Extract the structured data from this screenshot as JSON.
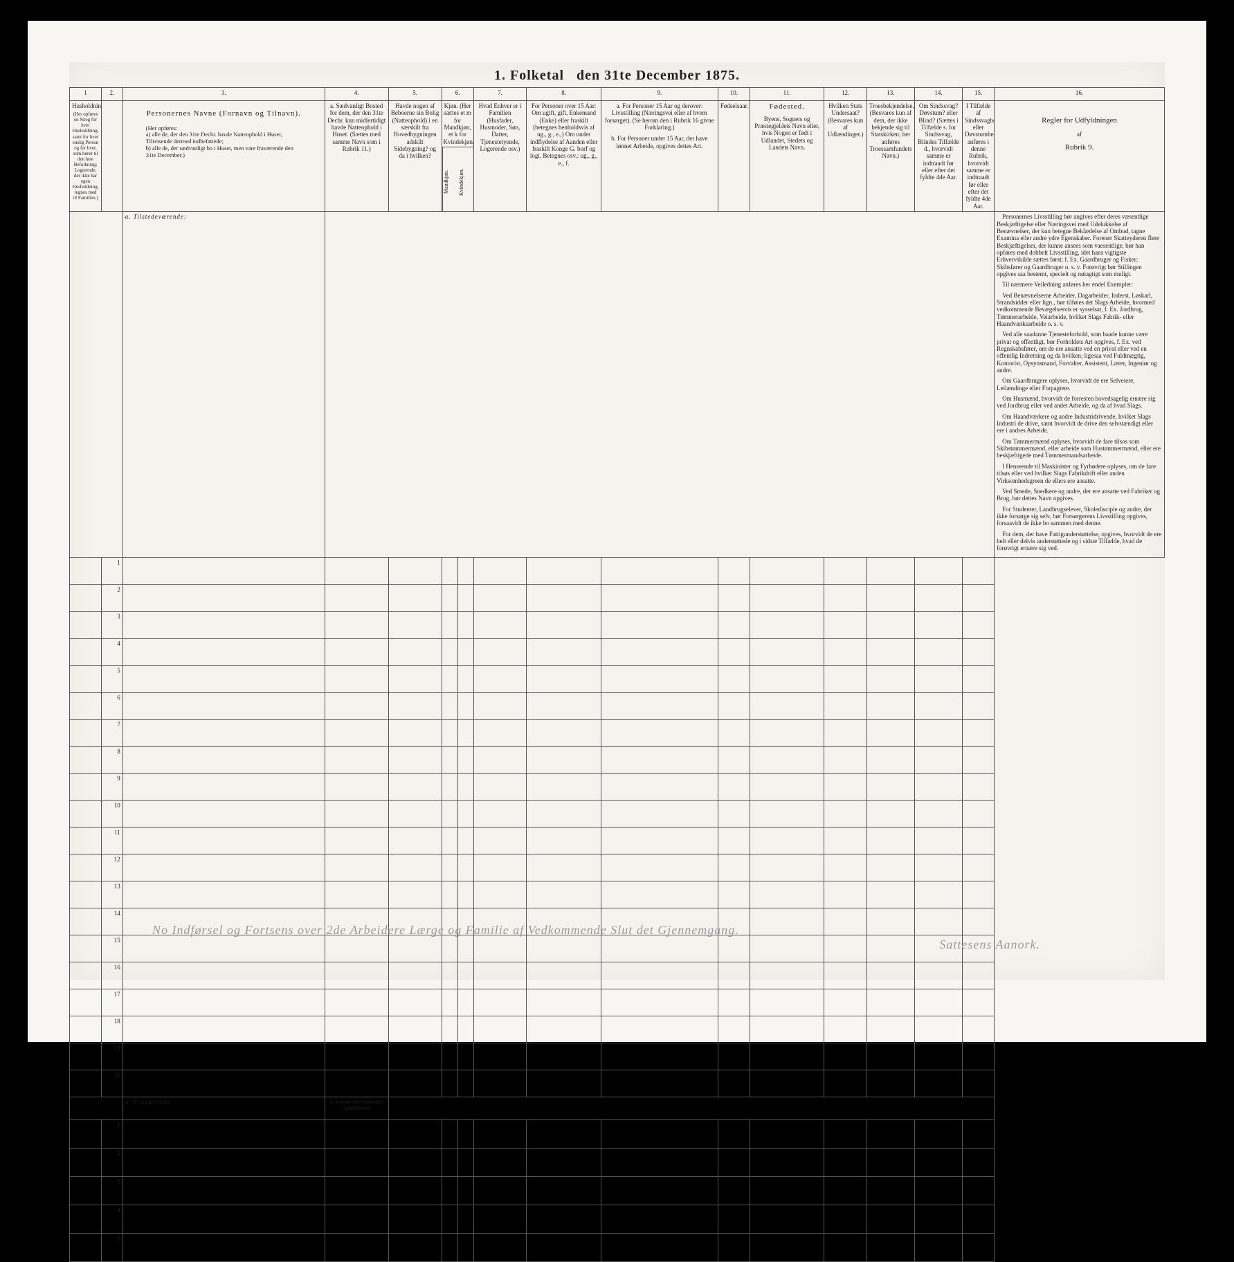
{
  "document": {
    "title_prefix": "1.  Folketal",
    "title_suffix": "den 31te December 1875.",
    "type": "census-form",
    "background_color": "#f6f3ee",
    "border_color": "#555555",
    "text_color": "#222222"
  },
  "columns": {
    "numbers": [
      "1",
      "2.",
      "3.",
      "4.",
      "5.",
      "6.",
      "7.",
      "8.",
      "9.",
      "10.",
      "11.",
      "12.",
      "13.",
      "14.",
      "15.",
      "16."
    ],
    "widths_pct": [
      4,
      3,
      23,
      7,
      5,
      3,
      5,
      8,
      12,
      4,
      8,
      4,
      5,
      5,
      4,
      16
    ],
    "headers": {
      "c1": "Husholdninger.",
      "c1_sub": "(Her opføres en Streg for hver Husholdning, samt for hver enslig Person og for hver, som hører til den løse Befolkning; Logerende, der ikke har egen Husholdning, regnes med til Familien.)",
      "c3_title": "Personernes Navne (Fornavn og Tilnavn).",
      "c3_sub_intro": "(Her opføres:",
      "c3_sub_a": "a) alle de, der den 31te Decbr. havde Natteophold i Huset, Tilreisende dermed indbefattede;",
      "c3_sub_b": "b) alle de, der sædvanligt bo i Huset, men vare fraværende den 31te December.)",
      "c4_a": "a. Sædvanligt Bosted for dem, der den 31te Decbr. kun midlertidigt havde Natteophold i Huset. (Sættes med samme Navn som i Rubrik 11.)",
      "c5": "Havde nogen af Beboerne sin Bolig (Natteophold) i en særskilt fra Hovedbygningen adskilt Sidebygning? og da i hvilken?",
      "c6": "Kjøn. (Her sættes et m for Mandkjøn, et k for Kvindekjøn.)",
      "c6_sub1": "Mandkjøn.",
      "c6_sub2": "Kvindekjøn.",
      "c7": "Hvad Enhver er i Familien (Husfader, Husmoder, Søn, Datter, Tjenestetyende, Logerende osv.)",
      "c8": "For Personer over 15 Aar: Om ugift, gift, Enkemand (Enke) eller fraskilt (betegnes henholdsvis af ug., g., e.,) Om under indflydelse af Aanden eller fraskilt Konge G. borf og logi. Betegnes osv.: ug., g., e., f.",
      "c9_a": "a. For Personer 15 Aar og derover: Livsstilling (Næringsvei eller af hvem forsørget). (Se herom den i Rubrik 16 givne Forklaring.)",
      "c9_b": "b. For Personer under 15 Aar, der have lønnet Arbeide, opgives dettes Art.",
      "c10": "Fødselsaar.",
      "c11_title": "Fødested.",
      "c11_sub": "Byens, Sognets og Præstegjeldets Navn eller, hvis Nogen er født i Udlandet, Stedets og Landets Navn.",
      "c12": "Hvilken Stats Undersaat? (Besvares kun af Udlændinger.)",
      "c13": "Troesbekjendelse. (Besvares kun af dem, der ikke bekjende sig til Statskirken; her anføres Troessamfundets Navn.)",
      "c14": "Om Sindssvag? Døvstum? eller Blind? (Sættes i Tilfælde s. for Sindssvag, Blindes Tilfælde d., hvorvidt samme er indtraadt før eller efter det fyldte 4de Aar.",
      "c15": "I Tilfælde af Sindssvaghed eller Døvstumhed anføres i denne Rubrik, hvorvidt samme er indtraadt før eller efter det fyldte 4de Aar.",
      "c16_title": "Regler for Udfyldningen",
      "c16_sub": "af",
      "c16_ref": "Rubrik 9."
    }
  },
  "sections": {
    "a_label": "a. Tilstedeværende:",
    "b_label": "b. Fraværende:",
    "b_col4": "b. Kjendt eller formodet Opholdssted."
  },
  "rows": {
    "section_a": [
      "1",
      "2",
      "3",
      "4",
      "5",
      "6",
      "7",
      "8",
      "9",
      "10",
      "11",
      "12",
      "13",
      "14",
      "15",
      "16",
      "17",
      "18",
      "19",
      "20"
    ],
    "section_b": [
      "1",
      "2",
      "3",
      "4",
      "5"
    ]
  },
  "rules_text": {
    "p1": "Personernes Livsstilling bør angives efter deres væsentlige Beskjæftigelse eller Næringsvei med Udelukkelse af Benævnelser, der kun betegne Beklædelse af Ombud, tagne Examina eller andre ydre Egenskaber. Forener Skatteyderen flere Beskjæftigelser, der kunne ansees som vaesentlige, bør han opføres med dobbelt Livsstilling, idet hans vigtigste Erhvervskilde sættes først; f. Ex. Gaardbruger og Fisker; Skibsfører og Gaardbruger o. s. v. Forøvrigt bør Stillingen opgives saa bestemt, specielt og nøiagtigt som muligt.",
    "p2": "Til nærmere Veiledning anføres her endel Exempler:",
    "p3": "Ved Benævnelserne Arbeider, Dagarbeider, Inderst, Løskarl, Strandsidder eller lign., bør tilføies det Slags Arbeide, hvormed vedkommende Bevægelsesvis er sysselsat, f. Ex. Jordbrug, Tømmerarbeide, Veiarbeide, hvilket Slags Fabrik- eller Haandværksarbeide o. s. v.",
    "p4": "Ved alle saadanne Tjenesteforhold, som baade kunne være privat og offentligt, bør Forholdets Art opgives, f. Ex. ved Regnskabsfører, om de ere ansatte ved en privat eller ved en offentlig Indretning og da hvilken; ligesaa ved Fuldmægtig, Kontorist, Opsynsmand, Forvalter, Assistent, Lærer, Ingeniør og andre.",
    "p5": "Om Gaardbrugere oplyses, hvorvidt de ere Selveiere, Leilændinge eller Forpagtere.",
    "p6": "Om Husmænd, hvorvidt de forresten hovedsagelig ernære sig ved Jordbrug eller ved andet Arbeide, og da af hvad Slags.",
    "p7": "Om Haandværkere og andre Industridrivende, hvilket Slags Industri de drive, samt hvorvidt de drive den selvstændigt eller ere i andres Arbeide.",
    "p8": "Om Tømmermænd oplyses, hvorvidt de fare tilsos som Skibstømmermænd, eller arbeide som Hustømmermænd, eller ere beskjæftigede med Tømmermandsarbeide.",
    "p9": "I Henseende til Maskinister og Fyrbødere oplyses, om de fare tilsøs eller ved hvilket Slags Fabrikdrift eller anden Virksomhedsgreen de ellers ere ansatte.",
    "p10": "Ved Smede, Snedkere og andre, der ere ansatte ved Fabriker og Brug, bør dettes Navn opgives.",
    "p11": "For Studenter, Landbrugselever, Skoledisciple og andre, der ikke forsørge sig selv, bør Forsørgerens Livsstilling opgives, forsaavidt de ikke bo sammen med denne.",
    "p12": "For dem, der have Fattigunderstøttelse, opgives, hvorvidt de ere helt eller delvis understøttede og i sidste Tilfælde, hvad de forøvrigt ernære sig ved."
  },
  "footer": {
    "line": "No Indførsel og Fortsens over 2de Arbeidere Lærge og Familie af Vedkommende Slut det Gjennemgang.",
    "signature": "Sattesens Aanork."
  }
}
